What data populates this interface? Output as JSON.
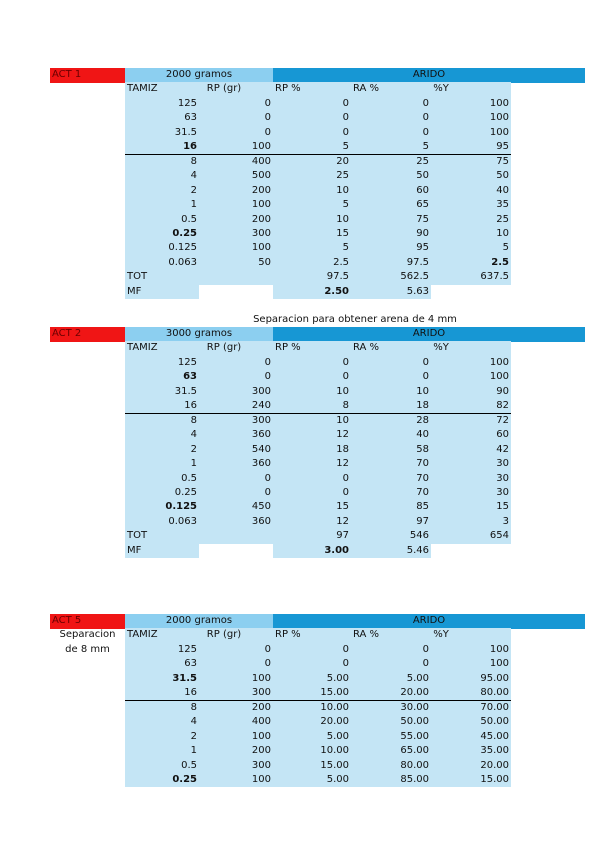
{
  "blocks": [
    {
      "label": "ACT 1",
      "grams": "2000 gramos",
      "group": "ARIDO",
      "headers": [
        "TAMIZ",
        "RP (gr)",
        "RP %",
        "RA %",
        "%Y"
      ],
      "rows": [
        [
          "125",
          "0",
          "0",
          "0",
          "100"
        ],
        [
          "63",
          "0",
          "0",
          "0",
          "100"
        ],
        [
          "31.5",
          "0",
          "0",
          "0",
          "100"
        ],
        [
          "16",
          "100",
          "5",
          "5",
          "95"
        ],
        [
          "8",
          "400",
          "20",
          "25",
          "75"
        ],
        [
          "4",
          "500",
          "25",
          "50",
          "50"
        ],
        [
          "2",
          "200",
          "10",
          "60",
          "40"
        ],
        [
          "1",
          "100",
          "5",
          "65",
          "35"
        ],
        [
          "0.5",
          "200",
          "10",
          "75",
          "25"
        ],
        [
          "0.25",
          "300",
          "15",
          "90",
          "10"
        ],
        [
          "0.125",
          "100",
          "5",
          "95",
          "5"
        ],
        [
          "0.063",
          "50",
          "2.5",
          "97.5",
          "2.5"
        ]
      ],
      "bold_cells": [
        [
          3,
          0
        ],
        [
          9,
          0
        ],
        [
          11,
          4
        ]
      ],
      "tot": {
        "label": "TOT",
        "values": [
          "97.5",
          "562.5",
          "637.5"
        ]
      },
      "mf": {
        "label": "MF",
        "values": [
          "2.50",
          "5.63"
        ]
      }
    },
    {
      "caption": "Separacion para obtener arena de 4 mm",
      "label": "ACT 2",
      "grams": "3000 gramos",
      "group": "ARIDO",
      "headers": [
        "TAMIZ",
        "RP (gr)",
        "RP %",
        "RA %",
        "%Y"
      ],
      "rows": [
        [
          "125",
          "0",
          "0",
          "0",
          "100"
        ],
        [
          "63",
          "0",
          "0",
          "0",
          "100"
        ],
        [
          "31.5",
          "300",
          "10",
          "10",
          "90"
        ],
        [
          "16",
          "240",
          "8",
          "18",
          "82"
        ],
        [
          "8",
          "300",
          "10",
          "28",
          "72"
        ],
        [
          "4",
          "360",
          "12",
          "40",
          "60"
        ],
        [
          "2",
          "540",
          "18",
          "58",
          "42"
        ],
        [
          "1",
          "360",
          "12",
          "70",
          "30"
        ],
        [
          "0.5",
          "0",
          "0",
          "70",
          "30"
        ],
        [
          "0.25",
          "0",
          "0",
          "70",
          "30"
        ],
        [
          "0.125",
          "450",
          "15",
          "85",
          "15"
        ],
        [
          "0.063",
          "360",
          "12",
          "97",
          "3"
        ]
      ],
      "bold_cells": [
        [
          1,
          0
        ],
        [
          10,
          0
        ]
      ],
      "tot": {
        "label": "TOT",
        "values": [
          "97",
          "546",
          "654"
        ]
      },
      "mf": {
        "label": "MF",
        "values": [
          "3.00",
          "5.46"
        ]
      }
    },
    {
      "label": "ACT 5",
      "grams": "2000 gramos",
      "group": "ARIDO",
      "side_note": [
        "Separacion",
        "de 8 mm"
      ],
      "headers": [
        "TAMIZ",
        "RP (gr)",
        "RP %",
        "RA %",
        "%Y"
      ],
      "rows": [
        [
          "125",
          "0",
          "0",
          "0",
          "100"
        ],
        [
          "63",
          "0",
          "0",
          "0",
          "100"
        ],
        [
          "31.5",
          "100",
          "5.00",
          "5.00",
          "95.00"
        ],
        [
          "16",
          "300",
          "15.00",
          "20.00",
          "80.00"
        ],
        [
          "8",
          "200",
          "10.00",
          "30.00",
          "70.00"
        ],
        [
          "4",
          "400",
          "20.00",
          "50.00",
          "50.00"
        ],
        [
          "2",
          "100",
          "5.00",
          "55.00",
          "45.00"
        ],
        [
          "1",
          "200",
          "10.00",
          "65.00",
          "35.00"
        ],
        [
          "0.5",
          "300",
          "15.00",
          "80.00",
          "20.00"
        ],
        [
          "0.25",
          "100",
          "5.00",
          "85.00",
          "15.00"
        ]
      ],
      "bold_cells": [
        [
          2,
          0
        ],
        [
          9,
          0
        ]
      ]
    }
  ]
}
